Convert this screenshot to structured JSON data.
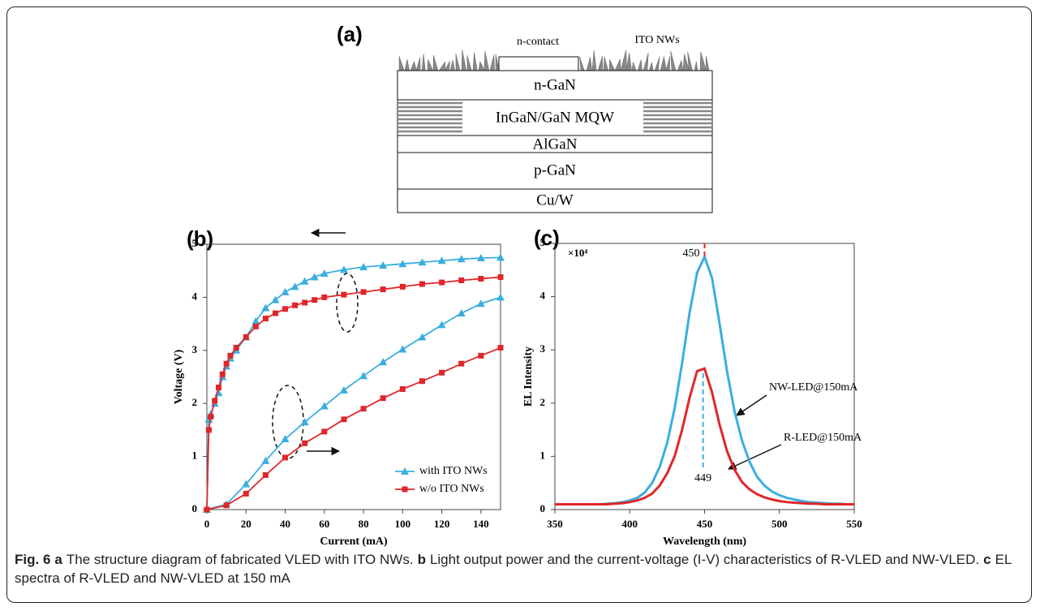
{
  "diagram": {
    "panel_label": "(a)",
    "contact_label": "n-contact",
    "nanowire_label": "ITO NWs",
    "layers": [
      "n-GaN",
      "InGaN/GaN MQW",
      "AlGaN",
      "p-GaN",
      "Cu/W"
    ]
  },
  "chart_data": [
    {
      "type": "line",
      "panel_label": "(b)",
      "x_label": "Current (mA)",
      "y_label": "Voltage (V)",
      "xlim": [
        0,
        150
      ],
      "xticks": [
        0,
        20,
        40,
        60,
        80,
        100,
        120,
        140
      ],
      "ylim": [
        0,
        5
      ],
      "yticks": [
        0,
        1,
        2,
        3,
        4,
        5
      ],
      "legend": "lower right",
      "series": [
        {
          "name": "with ITO NWs",
          "color": "#3aaee0",
          "marker": "triangle",
          "x": [
            0,
            1,
            2,
            4,
            6,
            8,
            10,
            12,
            15,
            20,
            25,
            30,
            35,
            40,
            45,
            50,
            55,
            60,
            70,
            80,
            90,
            100,
            110,
            120,
            130,
            140,
            150
          ],
          "values": [
            0,
            1.7,
            1.8,
            2.0,
            2.2,
            2.5,
            2.7,
            2.85,
            3.0,
            3.25,
            3.55,
            3.8,
            3.95,
            4.1,
            4.2,
            4.3,
            4.38,
            4.45,
            4.52,
            4.57,
            4.6,
            4.63,
            4.66,
            4.69,
            4.72,
            4.74,
            4.75
          ],
          "x2": [
            0,
            10,
            20,
            30,
            40,
            50,
            60,
            70,
            80,
            90,
            100,
            110,
            120,
            130,
            140,
            150
          ],
          "values2": [
            0,
            0.1,
            0.48,
            0.92,
            1.33,
            1.65,
            1.95,
            2.25,
            2.52,
            2.78,
            3.02,
            3.25,
            3.48,
            3.7,
            3.88,
            4.0
          ]
        },
        {
          "name": "w/o ITO NWs",
          "color": "#e0262a",
          "marker": "square",
          "x": [
            0,
            1,
            2,
            4,
            6,
            8,
            10,
            12,
            15,
            20,
            25,
            30,
            35,
            40,
            45,
            50,
            55,
            60,
            70,
            80,
            90,
            100,
            110,
            120,
            130,
            140,
            150
          ],
          "values": [
            0,
            1.5,
            1.75,
            2.05,
            2.3,
            2.55,
            2.75,
            2.9,
            3.05,
            3.25,
            3.45,
            3.6,
            3.7,
            3.78,
            3.85,
            3.9,
            3.95,
            4.0,
            4.05,
            4.1,
            4.15,
            4.2,
            4.25,
            4.28,
            4.32,
            4.35,
            4.38
          ],
          "x2": [
            0,
            10,
            20,
            30,
            40,
            50,
            60,
            70,
            80,
            90,
            100,
            110,
            120,
            130,
            140,
            150
          ],
          "values2": [
            0,
            0.08,
            0.3,
            0.65,
            0.98,
            1.25,
            1.47,
            1.7,
            1.9,
            2.1,
            2.27,
            2.42,
            2.58,
            2.75,
            2.9,
            3.05
          ]
        }
      ]
    },
    {
      "type": "line",
      "panel_label": "(c)",
      "x_label": "Wavelength (nm)",
      "y_label": "EL Intensity",
      "multiplier_label": "×10⁴",
      "xlim": [
        350,
        550
      ],
      "xticks": [
        350,
        400,
        450,
        500,
        550
      ],
      "ylim": [
        0,
        5
      ],
      "yticks": [
        0,
        1,
        2,
        3,
        4,
        5
      ],
      "peak_labels": [
        450,
        449
      ],
      "x": [
        350,
        355,
        360,
        365,
        370,
        375,
        380,
        385,
        390,
        395,
        400,
        405,
        410,
        415,
        420,
        425,
        430,
        435,
        440,
        445,
        450,
        455,
        460,
        465,
        470,
        475,
        480,
        485,
        490,
        495,
        500,
        505,
        510,
        515,
        520,
        525,
        530,
        535,
        540,
        545,
        550
      ],
      "series": [
        {
          "name": "NW-LED@150mA",
          "color": "#3aaee0",
          "values": [
            0.1,
            0.1,
            0.1,
            0.1,
            0.1,
            0.1,
            0.1,
            0.11,
            0.12,
            0.14,
            0.17,
            0.22,
            0.32,
            0.5,
            0.8,
            1.25,
            1.9,
            2.75,
            3.7,
            4.45,
            4.75,
            4.35,
            3.5,
            2.6,
            1.85,
            1.3,
            0.9,
            0.62,
            0.45,
            0.34,
            0.27,
            0.22,
            0.19,
            0.16,
            0.14,
            0.13,
            0.12,
            0.11,
            0.11,
            0.1,
            0.1
          ]
        },
        {
          "name": "R-LED@150mA",
          "color": "#e0262a",
          "values": [
            0.1,
            0.1,
            0.1,
            0.1,
            0.1,
            0.1,
            0.1,
            0.1,
            0.11,
            0.12,
            0.14,
            0.17,
            0.22,
            0.3,
            0.45,
            0.68,
            1.0,
            1.5,
            2.1,
            2.6,
            2.65,
            2.2,
            1.6,
            1.1,
            0.75,
            0.52,
            0.38,
            0.29,
            0.23,
            0.19,
            0.16,
            0.14,
            0.13,
            0.12,
            0.11,
            0.11,
            0.1,
            0.1,
            0.1,
            0.1,
            0.1
          ]
        }
      ]
    }
  ],
  "caption": {
    "figure_label": "Fig. 6",
    "parts": [
      {
        "letter": "a",
        "text": "The structure diagram of fabricated VLED with ITO NWs."
      },
      {
        "letter": "b",
        "text": "Light output power and the current-voltage (I-V) characteristics of R-VLED and NW-VLED."
      },
      {
        "letter": "c",
        "text": "EL spectra of R-VLED and NW-VLED at 150 mA"
      }
    ]
  }
}
